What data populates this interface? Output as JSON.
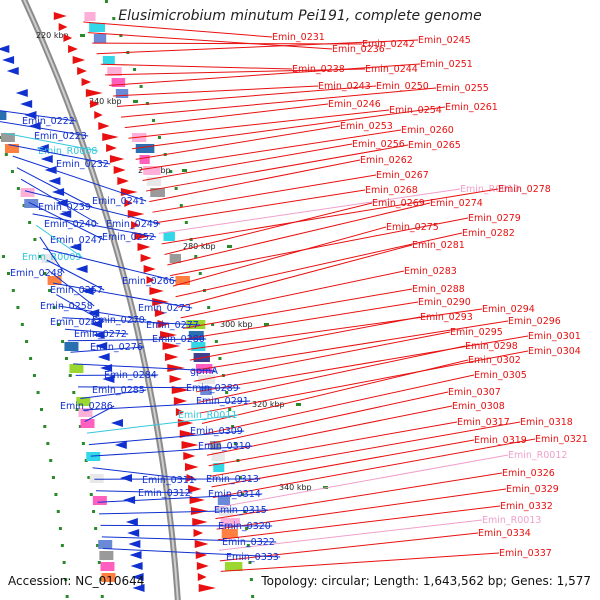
{
  "title": "Elusimicrobium minutum Pei191, complete genome",
  "footer": {
    "accession": "Accession: NC_010644",
    "summary": "Topology: circular; Length: 1,643,562 bp; Genes: 1,577"
  },
  "colors": {
    "forward_gene": "#e81010",
    "reverse_gene": "#1030d0",
    "rna_gene": "#35c7dc",
    "rna_gene_pink": "#f0a0cc",
    "backbone": "#8c8c8c",
    "kbp_tick": "#2a8a2a"
  },
  "kbp_ticks": [
    "220 kbp",
    "240 kbp",
    "260 kbp",
    "280 kbp",
    "300 kbp",
    "320 kbp",
    "340 kbp"
  ],
  "right_labels": [
    {
      "t": "Emin_0231",
      "c": "f"
    },
    {
      "t": "Emin_0236",
      "c": "f"
    },
    {
      "t": "Emin_0242",
      "c": "f"
    },
    {
      "t": "Emin_0245",
      "c": "f"
    },
    {
      "t": "Emin_0238",
      "c": "f"
    },
    {
      "t": "Emin_0244",
      "c": "f"
    },
    {
      "t": "Emin_0251",
      "c": "f"
    },
    {
      "t": "Emin_0243",
      "c": "f"
    },
    {
      "t": "Emin_0250",
      "c": "f"
    },
    {
      "t": "Emin_0255",
      "c": "f"
    },
    {
      "t": "Emin_0246",
      "c": "f"
    },
    {
      "t": "Emin_0254",
      "c": "f"
    },
    {
      "t": "Emin_0261",
      "c": "f"
    },
    {
      "t": "Emin_0253",
      "c": "f"
    },
    {
      "t": "Emin_0260",
      "c": "f"
    },
    {
      "t": "Emin_0256",
      "c": "f"
    },
    {
      "t": "Emin_0265",
      "c": "f"
    },
    {
      "t": "Emin_0262",
      "c": "f"
    },
    {
      "t": "Emin_0267",
      "c": "f"
    },
    {
      "t": "Emin_0268",
      "c": "f"
    },
    {
      "t": "Emin_R0010",
      "c": "p"
    },
    {
      "t": "Emin_0278",
      "c": "f"
    },
    {
      "t": "Emin_0269",
      "c": "f"
    },
    {
      "t": "Emin_0274",
      "c": "f"
    },
    {
      "t": "Emin_0279",
      "c": "f"
    },
    {
      "t": "Emin_0275",
      "c": "f"
    },
    {
      "t": "Emin_0282",
      "c": "f"
    },
    {
      "t": "Emin_0281",
      "c": "f"
    },
    {
      "t": "Emin_0283",
      "c": "f"
    },
    {
      "t": "Emin_0288",
      "c": "f"
    },
    {
      "t": "Emin_0290",
      "c": "f"
    },
    {
      "t": "Emin_0294",
      "c": "f"
    },
    {
      "t": "Emin_0293",
      "c": "f"
    },
    {
      "t": "Emin_0296",
      "c": "f"
    },
    {
      "t": "Emin_0295",
      "c": "f"
    },
    {
      "t": "Emin_0301",
      "c": "f"
    },
    {
      "t": "Emin_0298",
      "c": "f"
    },
    {
      "t": "Emin_0304",
      "c": "f"
    },
    {
      "t": "Emin_0302",
      "c": "f"
    },
    {
      "t": "Emin_0305",
      "c": "f"
    },
    {
      "t": "Emin_0307",
      "c": "f"
    },
    {
      "t": "Emin_0308",
      "c": "f"
    },
    {
      "t": "Emin_0317",
      "c": "f"
    },
    {
      "t": "Emin_0318",
      "c": "f"
    },
    {
      "t": "Emin_0319",
      "c": "f"
    },
    {
      "t": "Emin_0321",
      "c": "f"
    },
    {
      "t": "Emin_R0012",
      "c": "p"
    },
    {
      "t": "Emin_0326",
      "c": "f"
    },
    {
      "t": "Emin_0329",
      "c": "f"
    },
    {
      "t": "Emin_0332",
      "c": "f"
    },
    {
      "t": "Emin_R0013",
      "c": "p"
    },
    {
      "t": "Emin_0334",
      "c": "f"
    },
    {
      "t": "Emin_0337",
      "c": "f"
    }
  ],
  "left_labels": [
    {
      "t": "Emin_0222",
      "c": "r"
    },
    {
      "t": "Emin_0223",
      "c": "r"
    },
    {
      "t": "Emin_R0008",
      "c": "c"
    },
    {
      "t": "Emin_0232",
      "c": "r"
    },
    {
      "t": "Emin_0241",
      "c": "r"
    },
    {
      "t": "Emin_0239",
      "c": "r"
    },
    {
      "t": "Emin_0240",
      "c": "r"
    },
    {
      "t": "Emin_0249",
      "c": "r"
    },
    {
      "t": "Emin_0247",
      "c": "r"
    },
    {
      "t": "Emin_0252",
      "c": "r"
    },
    {
      "t": "Emin_R0009",
      "c": "c"
    },
    {
      "t": "Emin_0248",
      "c": "r"
    },
    {
      "t": "Emin_0266",
      "c": "r"
    },
    {
      "t": "Emin_0257",
      "c": "r"
    },
    {
      "t": "Emin_0258",
      "c": "r"
    },
    {
      "t": "Emin_0273",
      "c": "r"
    },
    {
      "t": "Emin_0263",
      "c": "r"
    },
    {
      "t": "Emin_0270",
      "c": "r"
    },
    {
      "t": "Emin_0277",
      "c": "r"
    },
    {
      "t": "Emin_0272",
      "c": "r"
    },
    {
      "t": "Emin_0280",
      "c": "r"
    },
    {
      "t": "Emin_0276",
      "c": "r"
    },
    {
      "t": "gpmA",
      "c": "r"
    },
    {
      "t": "Emin_0284",
      "c": "r"
    },
    {
      "t": "Emin_0289",
      "c": "r"
    },
    {
      "t": "Emin_0285",
      "c": "r"
    },
    {
      "t": "Emin_0291",
      "c": "r"
    },
    {
      "t": "Emin_0286",
      "c": "r"
    },
    {
      "t": "Emin_R0011",
      "c": "c"
    },
    {
      "t": "Emin_0309",
      "c": "r"
    },
    {
      "t": "Emin_0310",
      "c": "r"
    },
    {
      "t": "Emin_0311",
      "c": "r"
    },
    {
      "t": "Emin_0313",
      "c": "r"
    },
    {
      "t": "Emin_0312",
      "c": "r"
    },
    {
      "t": "Emin_0314",
      "c": "r"
    },
    {
      "t": "Emin_0315",
      "c": "r"
    },
    {
      "t": "Emin_0320",
      "c": "r"
    },
    {
      "t": "Emin_0322",
      "c": "r"
    },
    {
      "t": "Emin_0333",
      "c": "r"
    }
  ]
}
